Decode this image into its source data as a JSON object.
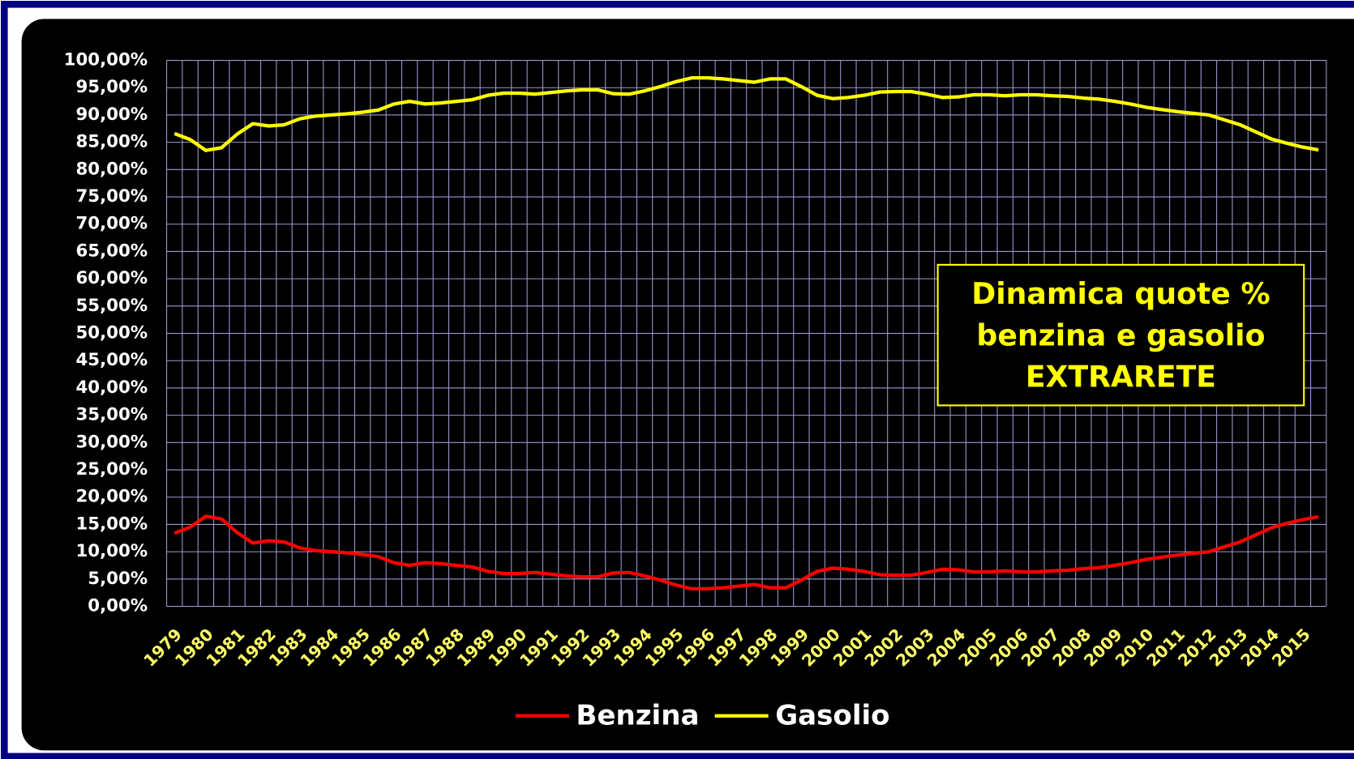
{
  "chart_data": {
    "type": "line",
    "annotation": [
      "Dinamica quote %",
      "benzina e gasolio",
      "EXTRARETE"
    ],
    "categories": [
      "1979",
      null,
      "1980",
      null,
      "1981",
      null,
      "1982",
      null,
      "1983",
      null,
      "1984",
      null,
      "1985",
      null,
      "1986",
      null,
      "1987",
      null,
      "1988",
      null,
      "1989",
      null,
      "1990",
      null,
      "1991",
      null,
      "1992",
      null,
      "1993",
      null,
      "1994",
      null,
      "1995",
      null,
      "1996",
      null,
      "1997",
      null,
      "1998",
      null,
      "1999",
      null,
      "2000",
      null,
      "2001",
      null,
      "2002",
      null,
      "2003",
      null,
      "2004",
      null,
      "2005",
      null,
      "2006",
      null,
      "2007",
      null,
      "2008",
      null,
      "2009",
      null,
      "2010",
      null,
      "2011",
      null,
      "2012",
      null,
      "2013",
      null,
      "2014",
      null,
      "2015",
      null
    ],
    "series": [
      {
        "name": "Benzina",
        "color": "#ff0000",
        "values": [
          13.4,
          14.5,
          16.5,
          16.0,
          13.5,
          11.6,
          12.0,
          11.8,
          10.7,
          10.2,
          10.0,
          9.8,
          9.5,
          9.1,
          8.0,
          7.5,
          8.0,
          7.8,
          7.5,
          7.2,
          6.4,
          6.0,
          6.0,
          6.2,
          5.9,
          5.6,
          5.4,
          5.4,
          6.1,
          6.2,
          5.6,
          4.8,
          3.9,
          3.2,
          3.2,
          3.4,
          3.7,
          4.0,
          3.4,
          3.4,
          4.8,
          6.4,
          7.0,
          6.8,
          6.4,
          5.8,
          5.7,
          5.7,
          6.2,
          6.8,
          6.7,
          6.3,
          6.3,
          6.5,
          6.3,
          6.3,
          6.5,
          6.6,
          6.9,
          7.1,
          7.5,
          8.0,
          8.6,
          9.0,
          9.4,
          9.7,
          10.0,
          10.9,
          11.8,
          13.1,
          14.4,
          15.2,
          15.9,
          16.4
        ]
      },
      {
        "name": "Gasolio",
        "color": "#ffff00",
        "values": [
          86.6,
          85.5,
          83.5,
          84.0,
          86.5,
          88.4,
          88.0,
          88.2,
          89.3,
          89.8,
          90.0,
          90.2,
          90.5,
          90.9,
          92.0,
          92.5,
          92.0,
          92.2,
          92.5,
          92.8,
          93.6,
          94.0,
          94.0,
          93.8,
          94.1,
          94.4,
          94.6,
          94.6,
          93.9,
          93.8,
          94.4,
          95.2,
          96.1,
          96.8,
          96.8,
          96.6,
          96.3,
          96.0,
          96.6,
          96.6,
          95.2,
          93.6,
          93.0,
          93.2,
          93.6,
          94.2,
          94.3,
          94.3,
          93.8,
          93.2,
          93.3,
          93.7,
          93.7,
          93.5,
          93.7,
          93.7,
          93.5,
          93.4,
          93.1,
          92.9,
          92.5,
          92.0,
          91.4,
          91.0,
          90.6,
          90.3,
          90.0,
          89.1,
          88.2,
          86.9,
          85.6,
          84.8,
          84.1,
          83.6
        ]
      }
    ],
    "ylim": [
      0,
      100
    ],
    "yticks": [
      {
        "value": 0,
        "label": "0,00%"
      },
      {
        "value": 5,
        "label": "5,00%"
      },
      {
        "value": 10,
        "label": "10,00%"
      },
      {
        "value": 15,
        "label": "15,00%"
      },
      {
        "value": 20,
        "label": "20,00%"
      },
      {
        "value": 25,
        "label": "25,00%"
      },
      {
        "value": 30,
        "label": "30,00%"
      },
      {
        "value": 35,
        "label": "35,00%"
      },
      {
        "value": 40,
        "label": "40,00%"
      },
      {
        "value": 45,
        "label": "45,00%"
      },
      {
        "value": 50,
        "label": "50,00%"
      },
      {
        "value": 55,
        "label": "55,00%"
      },
      {
        "value": 60,
        "label": "60,00%"
      },
      {
        "value": 65,
        "label": "65,00%"
      },
      {
        "value": 70,
        "label": "70,00%"
      },
      {
        "value": 75,
        "label": "75,00%"
      },
      {
        "value": 80,
        "label": "80,00%"
      },
      {
        "value": 85,
        "label": "85,00%"
      },
      {
        "value": 90,
        "label": "90,00%"
      },
      {
        "value": 95,
        "label": "95,00%"
      },
      {
        "value": 100,
        "label": "100,00%"
      }
    ],
    "grid": true,
    "legend": "bottom"
  }
}
